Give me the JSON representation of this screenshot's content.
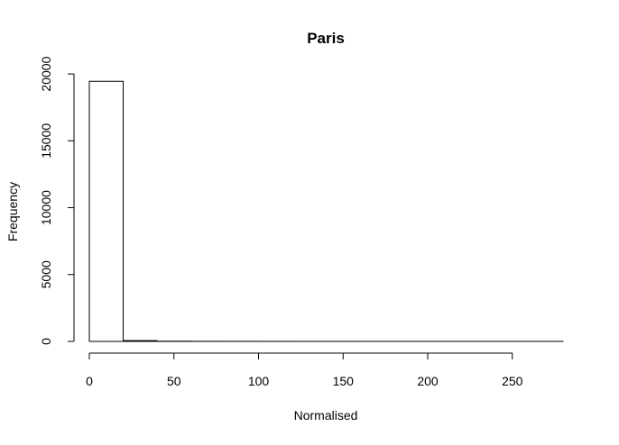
{
  "chart_data": {
    "type": "bar",
    "subtype": "histogram",
    "title": "Paris",
    "xlabel": "Normalised",
    "ylabel": "Frequency",
    "bins": [
      {
        "from": 0,
        "to": 20,
        "count": 19450
      },
      {
        "from": 20,
        "to": 40,
        "count": 60
      },
      {
        "from": 40,
        "to": 60,
        "count": 15
      },
      {
        "from": 60,
        "to": 80,
        "count": 8
      },
      {
        "from": 80,
        "to": 100,
        "count": 5
      },
      {
        "from": 100,
        "to": 120,
        "count": 3
      },
      {
        "from": 120,
        "to": 140,
        "count": 2
      },
      {
        "from": 140,
        "to": 160,
        "count": 2
      },
      {
        "from": 160,
        "to": 180,
        "count": 1
      },
      {
        "from": 180,
        "to": 200,
        "count": 1
      },
      {
        "from": 200,
        "to": 220,
        "count": 1
      },
      {
        "from": 220,
        "to": 240,
        "count": 1
      },
      {
        "from": 240,
        "to": 260,
        "count": 1
      },
      {
        "from": 260,
        "to": 280,
        "count": 1
      }
    ],
    "x_ticks": [
      "0",
      "50",
      "100",
      "150",
      "200",
      "250"
    ],
    "y_ticks": [
      "0",
      "5000",
      "10000",
      "15000",
      "20000"
    ],
    "xlim": [
      0,
      280
    ],
    "ylim": [
      0,
      20000
    ],
    "grid": false,
    "bar_fill": "#ffffff",
    "bar_stroke": "#000000"
  }
}
